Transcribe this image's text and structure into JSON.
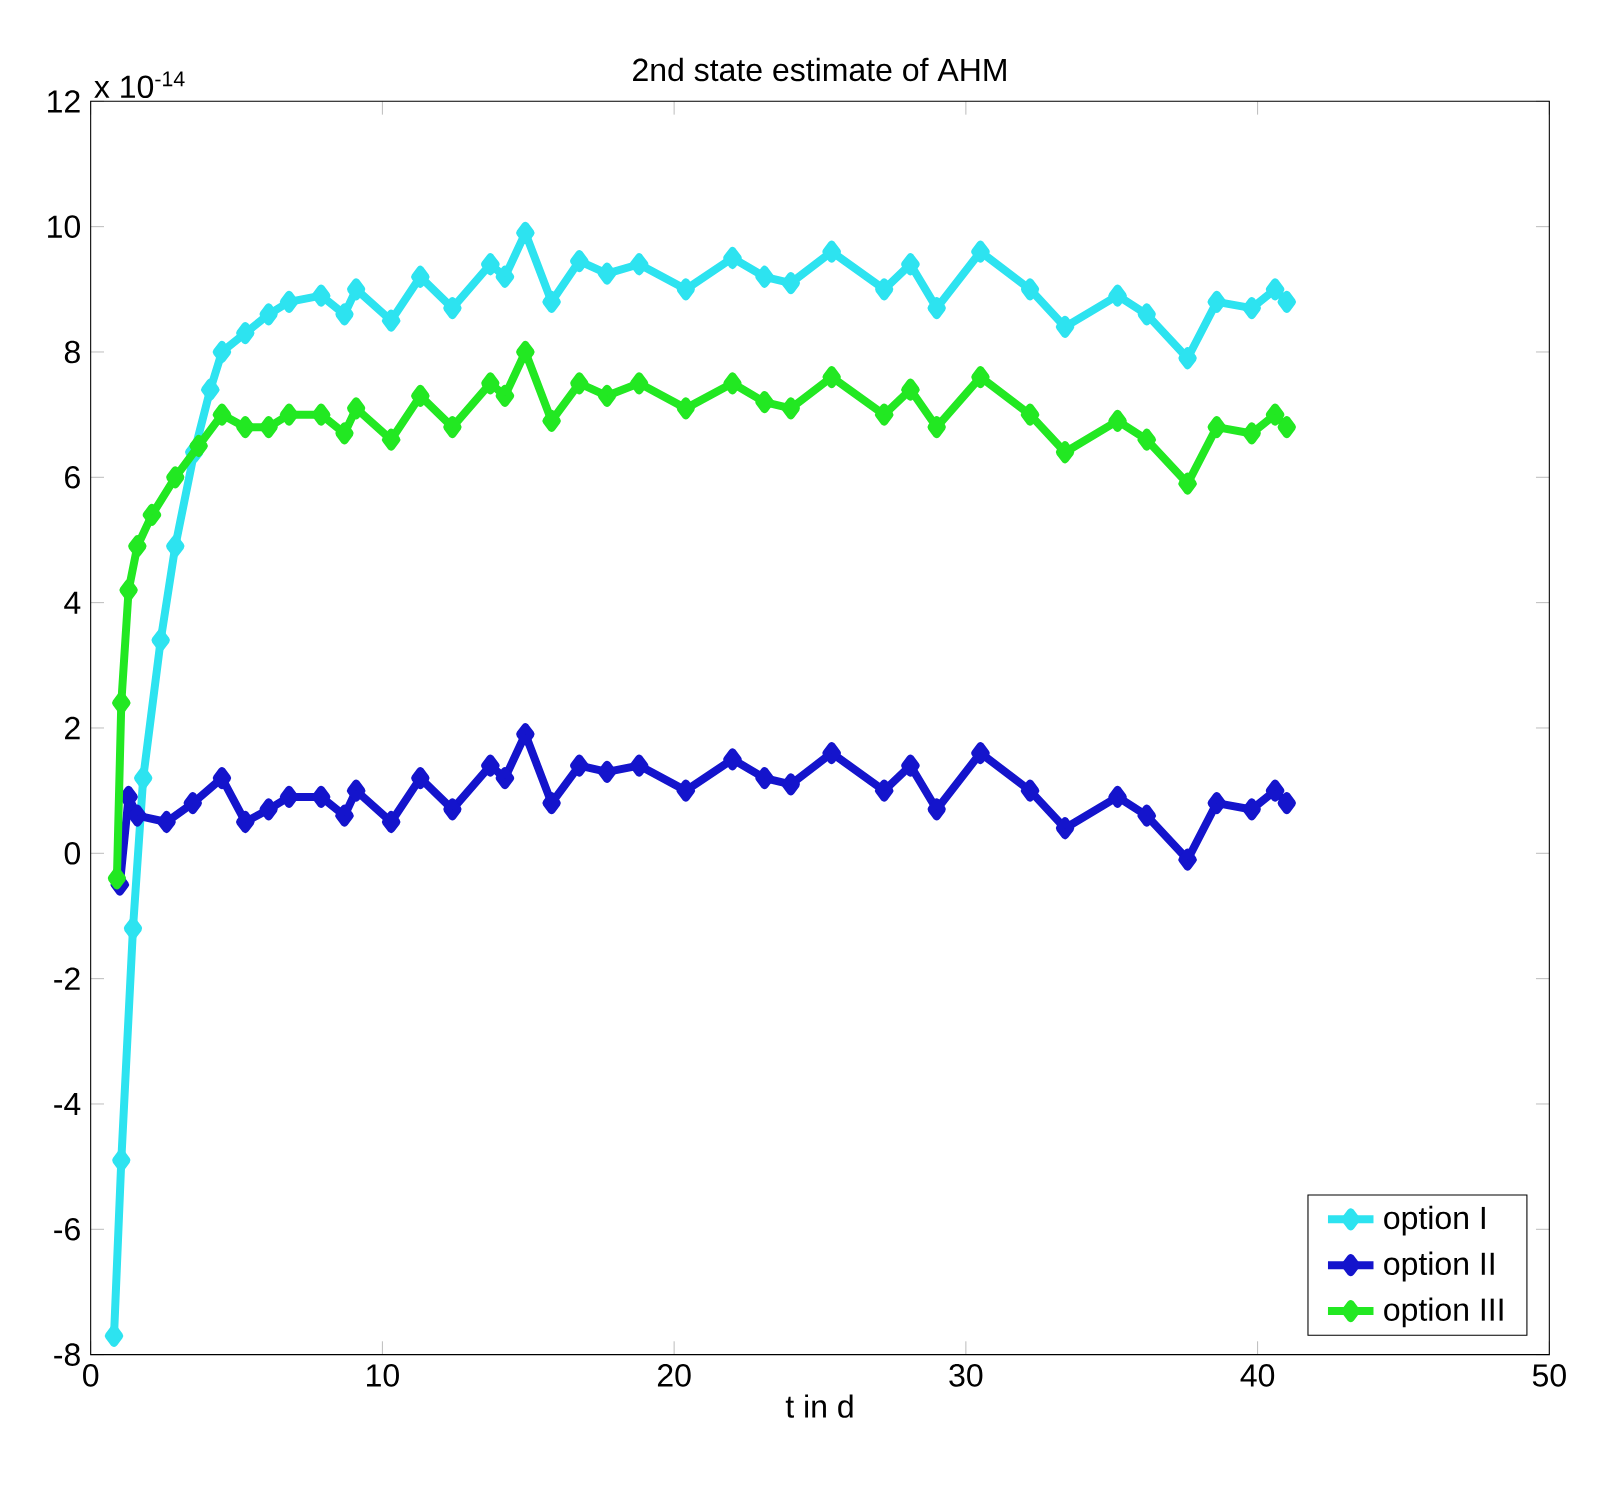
{
  "chart_data": {
    "type": "line",
    "title": "2nd state estimate of AHM",
    "xlabel": "t in d",
    "annotations": [
      "x 10$^{-14}$"
    ],
    "xlim": [
      0,
      50
    ],
    "ylim": [
      -8,
      12
    ],
    "xticks": [
      0,
      10,
      20,
      30,
      40,
      50
    ],
    "yticks": [
      -8,
      -6,
      -4,
      -2,
      0,
      2,
      4,
      6,
      8,
      10,
      12
    ],
    "marker": "diamond",
    "legend": "bottom right",
    "grid": false,
    "series": [
      {
        "name": "option I",
        "color": "#2de3f0",
        "x": [
          0.8,
          1.05,
          1.45,
          1.8,
          2.4,
          2.9,
          3.55,
          4.1,
          4.5,
          5.3,
          6.1,
          6.8,
          7.9,
          8.7,
          9.1,
          10.3,
          11.3,
          12.4,
          13.7,
          14.2,
          14.9,
          15.8,
          16.75,
          17.7,
          18.8,
          20.4,
          22.0,
          23.1,
          24.0,
          25.4,
          27.2,
          28.1,
          29.0,
          30.5,
          32.2,
          33.4,
          35.2,
          36.2,
          37.6,
          38.6,
          39.8,
          40.6,
          41.0
        ],
        "values": [
          -7.7,
          -4.9,
          -1.2,
          1.2,
          3.4,
          4.9,
          6.4,
          7.4,
          8.0,
          8.3,
          8.6,
          8.8,
          8.9,
          8.6,
          9.0,
          8.5,
          9.2,
          8.7,
          9.4,
          9.2,
          9.9,
          8.8,
          9.45,
          9.25,
          9.4,
          9.0,
          9.5,
          9.2,
          9.1,
          9.6,
          9.0,
          9.4,
          8.7,
          9.6,
          9.0,
          8.4,
          8.9,
          8.6,
          7.9,
          8.8,
          8.7,
          9.0,
          8.8
        ]
      },
      {
        "name": "option II",
        "color": "#1414cc",
        "x": [
          1.0,
          1.3,
          1.6,
          2.6,
          3.5,
          4.5,
          5.3,
          6.1,
          6.8,
          7.9,
          8.7,
          9.1,
          10.3,
          11.3,
          12.4,
          13.7,
          14.2,
          14.9,
          15.8,
          16.75,
          17.7,
          18.8,
          20.4,
          22.0,
          23.1,
          24.0,
          25.4,
          27.2,
          28.1,
          29.0,
          30.5,
          32.2,
          33.4,
          35.2,
          36.2,
          37.6,
          38.6,
          39.8,
          40.6,
          41.0
        ],
        "values": [
          -0.5,
          0.9,
          0.6,
          0.5,
          0.8,
          1.2,
          0.5,
          0.7,
          0.9,
          0.9,
          0.6,
          1.0,
          0.5,
          1.2,
          0.7,
          1.4,
          1.2,
          1.9,
          0.8,
          1.4,
          1.3,
          1.4,
          1.0,
          1.5,
          1.2,
          1.1,
          1.6,
          1.0,
          1.4,
          0.7,
          1.6,
          1.0,
          0.4,
          0.9,
          0.6,
          -0.1,
          0.8,
          0.7,
          1.0,
          0.8
        ]
      },
      {
        "name": "option III",
        "color": "#22e822",
        "x": [
          0.9,
          1.05,
          1.3,
          1.6,
          2.1,
          2.9,
          3.7,
          4.5,
          5.3,
          6.1,
          6.8,
          7.9,
          8.7,
          9.1,
          10.3,
          11.3,
          12.4,
          13.7,
          14.2,
          14.9,
          15.8,
          16.75,
          17.7,
          18.8,
          20.4,
          22.0,
          23.1,
          24.0,
          25.4,
          27.2,
          28.1,
          29.0,
          30.5,
          32.2,
          33.4,
          35.2,
          36.2,
          37.6,
          38.6,
          39.8,
          40.6,
          41.0
        ],
        "values": [
          -0.4,
          2.4,
          4.2,
          4.9,
          5.4,
          6.0,
          6.5,
          7.0,
          6.8,
          6.8,
          7.0,
          7.0,
          6.7,
          7.1,
          6.6,
          7.3,
          6.8,
          7.5,
          7.3,
          8.0,
          6.9,
          7.5,
          7.3,
          7.5,
          7.1,
          7.5,
          7.2,
          7.1,
          7.6,
          7.0,
          7.4,
          6.8,
          7.6,
          7.0,
          6.4,
          6.9,
          6.6,
          5.9,
          6.8,
          6.7,
          7.0,
          6.8
        ]
      }
    ]
  }
}
